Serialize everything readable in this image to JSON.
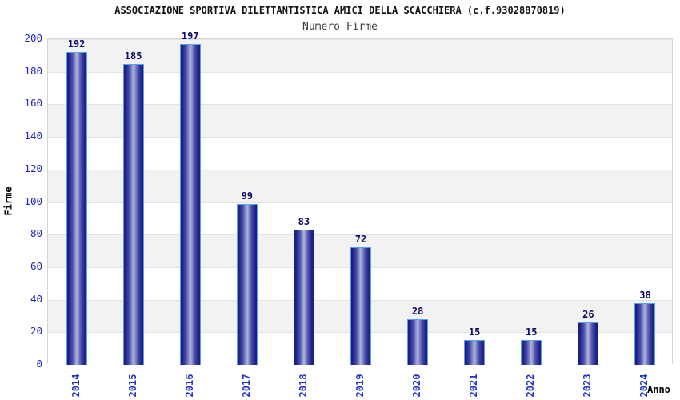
{
  "title": "ASSOCIAZIONE SPORTIVA DILETTANTISTICA AMICI DELLA SCACCHIERA (c.f.93028870819)",
  "subtitle": "Numero Firme",
  "chart_data": {
    "type": "bar",
    "categories": [
      "2014",
      "2015",
      "2016",
      "2017",
      "2018",
      "2019",
      "2020",
      "2021",
      "2022",
      "2023",
      "2024"
    ],
    "values": [
      192,
      185,
      197,
      99,
      83,
      72,
      28,
      15,
      15,
      26,
      38
    ],
    "title": "ASSOCIAZIONE SPORTIVA DILETTANTISTICA AMICI DELLA SCACCHIERA (c.f.93028870819)",
    "subtitle": "Numero Firme",
    "xlabel": "Anno",
    "ylabel": "Firme",
    "ylim": [
      0,
      200
    ],
    "ytick_step": 20,
    "ytick_labels": [
      "0",
      "20",
      "40",
      "60",
      "80",
      "100",
      "120",
      "140",
      "160",
      "180",
      "200"
    ],
    "legend": "none",
    "grid": "alternating-horizontal-bands",
    "colors": {
      "bar_dark": "#1b1b82",
      "bar_mid": "#4a50a8",
      "bar_light": "#adb3e2",
      "bar_border": "#57a0ee",
      "value_label": "#0a0a66",
      "ytick_label": "#2424cc",
      "xtick_label": "#2233cc",
      "band_gray": "#f2f2f2",
      "band_white": "#ffffff",
      "plot_border": "#d6d6d6",
      "title_color": "#111111",
      "subtitle_color": "#3a3a3a"
    }
  }
}
